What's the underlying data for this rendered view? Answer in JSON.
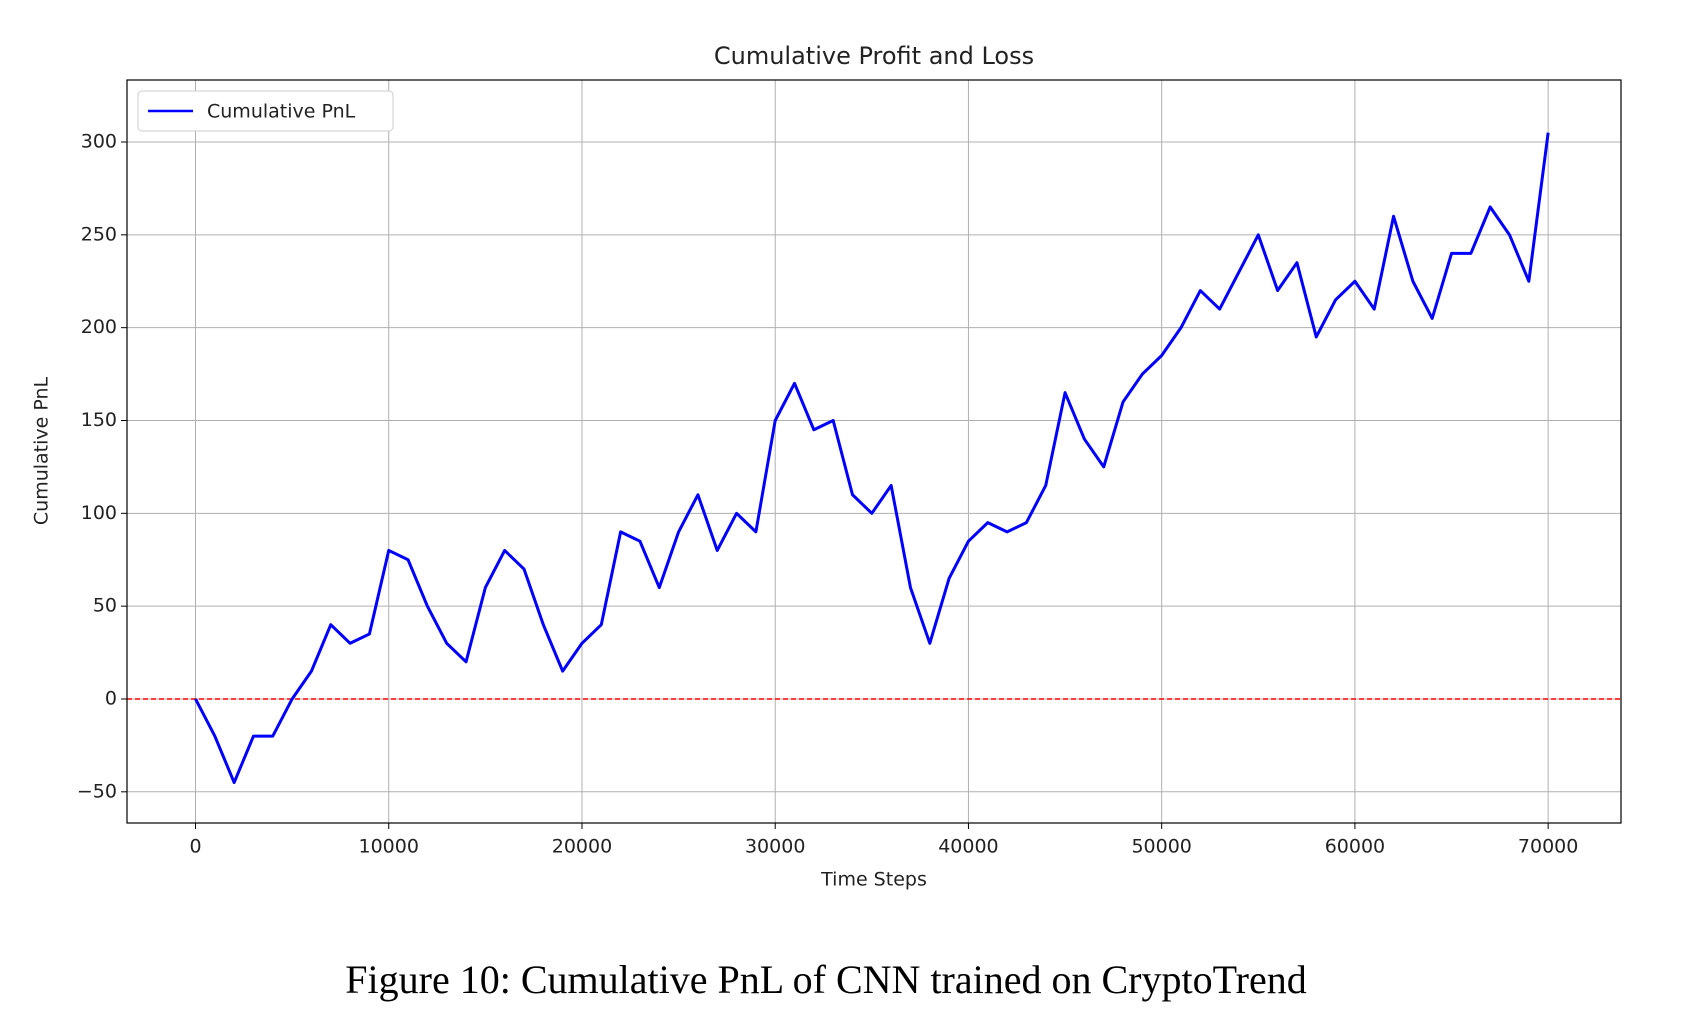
{
  "chart_data": {
    "type": "line",
    "title": "Cumulative Profit and Loss",
    "xlabel": "Time Steps",
    "ylabel": "Cumulative PnL",
    "x": [
      0,
      1000,
      2000,
      3000,
      4000,
      5000,
      6000,
      7000,
      8000,
      9000,
      10000,
      11000,
      12000,
      13000,
      14000,
      15000,
      16000,
      17000,
      18000,
      19000,
      20000,
      21000,
      22000,
      23000,
      24000,
      25000,
      26000,
      27000,
      28000,
      29000,
      30000,
      31000,
      32000,
      33000,
      34000,
      35000,
      36000,
      37000,
      38000,
      39000,
      40000,
      41000,
      42000,
      43000,
      44000,
      45000,
      46000,
      47000,
      48000,
      49000,
      50000,
      51000,
      52000,
      53000,
      54000,
      55000,
      56000,
      57000,
      58000,
      59000,
      60000,
      61000,
      62000,
      63000,
      64000,
      65000,
      66000,
      67000,
      68000,
      69000,
      70000
    ],
    "series": [
      {
        "name": "Cumulative PnL",
        "color": "#0000ff",
        "values": [
          0,
          -20,
          -45,
          -20,
          -20,
          0,
          15,
          40,
          30,
          35,
          80,
          75,
          50,
          30,
          20,
          60,
          80,
          70,
          40,
          15,
          30,
          40,
          90,
          85,
          60,
          90,
          110,
          80,
          100,
          90,
          150,
          170,
          145,
          150,
          110,
          100,
          115,
          60,
          30,
          65,
          85,
          95,
          90,
          95,
          115,
          165,
          140,
          125,
          160,
          175,
          185,
          200,
          220,
          210,
          230,
          250,
          220,
          235,
          195,
          215,
          225,
          210,
          260,
          225,
          205,
          240,
          240,
          265,
          250,
          225,
          305
        ]
      }
    ],
    "reference_line": {
      "value": 0,
      "color": "#ff0000"
    },
    "xlim": [
      -3545,
      73770
    ],
    "ylim": [
      -66.8,
      333.4
    ],
    "xticks": [
      0,
      10000,
      20000,
      30000,
      40000,
      50000,
      60000,
      70000
    ],
    "yticks": [
      {
        "value": -50,
        "label": "−50"
      },
      0,
      50,
      100,
      150,
      200,
      250,
      300
    ],
    "grid": true,
    "legend": "upper left"
  },
  "caption": "Figure 10: Cumulative PnL of CNN trained on CryptoTrend"
}
